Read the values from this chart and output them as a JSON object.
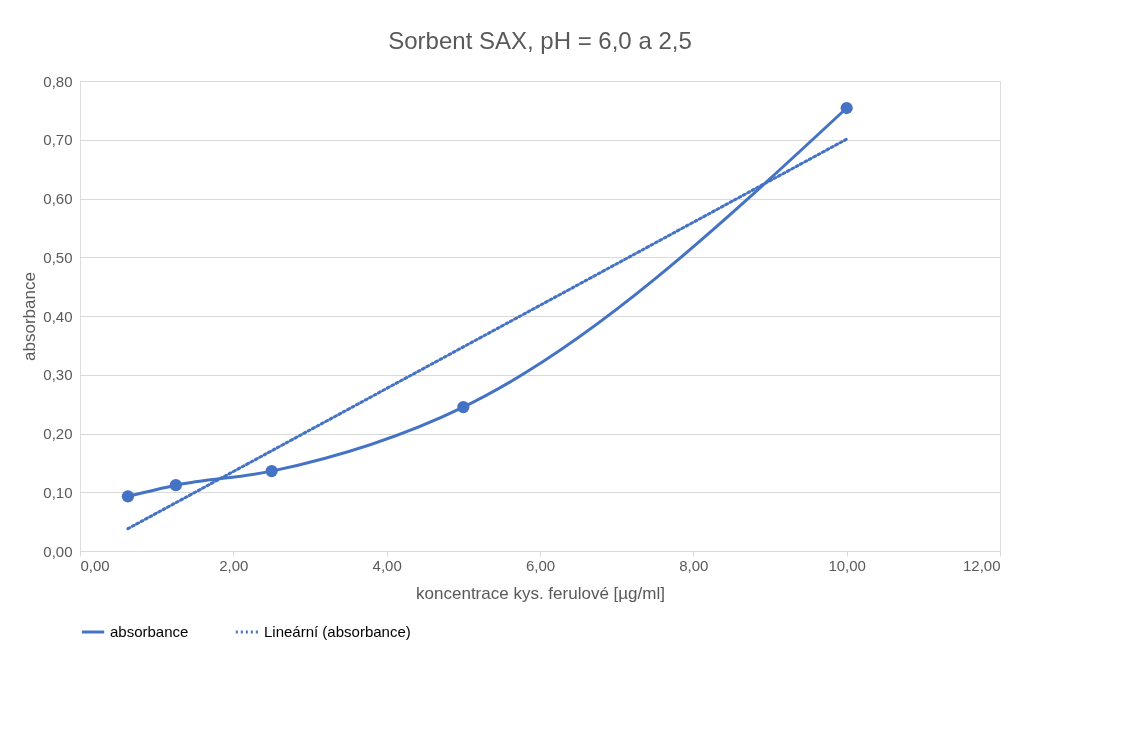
{
  "chart_data": {
    "type": "line",
    "title": "Sorbent SAX, pH = 6,0 a 2,5",
    "xlabel": "koncentrace kys. ferulové [µg/ml]",
    "ylabel": "absorbance",
    "x": [
      0.625,
      1.25,
      2.5,
      5,
      10
    ],
    "series": [
      {
        "name": "absorbance",
        "color": "#4472c4",
        "values": [
          0.093,
          0.112,
          0.136,
          0.245,
          0.754
        ],
        "marker": "circle",
        "line_style": "solid"
      },
      {
        "name": "Lineární (absorbance)",
        "color": "#4472c4",
        "x": [
          0.625,
          10
        ],
        "values": [
          0.038,
          0.701
        ],
        "marker": "none",
        "line_style": "dotted"
      }
    ],
    "xlim": [
      0,
      12
    ],
    "xticks": [
      {
        "value": 0,
        "label": "0,00"
      },
      {
        "value": 2,
        "label": "2,00"
      },
      {
        "value": 4,
        "label": "4,00"
      },
      {
        "value": 6,
        "label": "6,00"
      },
      {
        "value": 8,
        "label": "8,00"
      },
      {
        "value": 10,
        "label": "10,00"
      },
      {
        "value": 12,
        "label": "12,00"
      }
    ],
    "ylim": [
      0,
      0.8
    ],
    "yticks": [
      {
        "value": 0,
        "label": "0,00"
      },
      {
        "value": 0.1,
        "label": "0,10"
      },
      {
        "value": 0.2,
        "label": "0,20"
      },
      {
        "value": 0.3,
        "label": "0,30"
      },
      {
        "value": 0.4,
        "label": "0,40"
      },
      {
        "value": 0.5,
        "label": "0,50"
      },
      {
        "value": 0.6,
        "label": "0,60"
      },
      {
        "value": 0.7,
        "label": "0,70"
      },
      {
        "value": 0.8,
        "label": "0,80"
      }
    ],
    "grid": "y",
    "legend": "bottom"
  }
}
